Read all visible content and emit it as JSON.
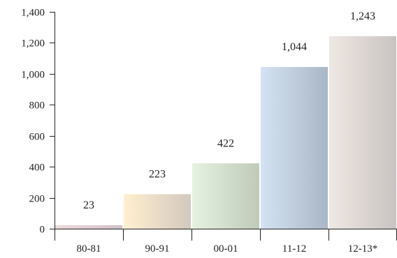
{
  "chart_data": {
    "type": "bar",
    "categories": [
      "80-81",
      "90-91",
      "00-01",
      "11-12",
      "12-13*"
    ],
    "values": [
      23,
      223,
      422,
      1044,
      1243
    ],
    "value_labels": [
      "23",
      "223",
      "422",
      "1,044",
      "1,243"
    ],
    "ylim": [
      0,
      1400
    ],
    "yticks": [
      0,
      200,
      400,
      600,
      800,
      1000,
      1200,
      1400
    ],
    "ytick_labels": [
      "0",
      "200",
      "400",
      "600",
      "800",
      "1,000",
      "1,200",
      "1,400"
    ],
    "grid": false,
    "legend": "none",
    "title": "",
    "xlabel": "",
    "ylabel": "",
    "bar_gradients": [
      [
        "#efdada",
        "#cfc1cb"
      ],
      [
        "#fff0cf",
        "#d2c8be"
      ],
      [
        "#e5f2e1",
        "#bfcab9"
      ],
      [
        "#d4e3f3",
        "#a9b6c5"
      ],
      [
        "#efe8e3",
        "#c9c3c1"
      ]
    ]
  }
}
